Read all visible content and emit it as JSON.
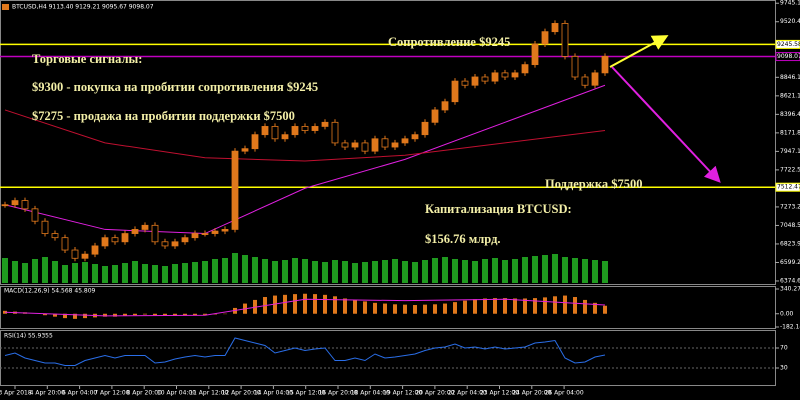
{
  "chart_data": [
    {
      "type": "candlestick",
      "title": "BTCUSD,H4  9113.40 9129.21 9095.67 9098.07",
      "values": [
        7300,
        7350,
        7250,
        7100,
        6950,
        6900,
        6750,
        6650,
        6700,
        6800,
        6900,
        6850,
        6950,
        7000,
        7050,
        6850,
        6800,
        6850,
        6900,
        6950,
        6950,
        6980,
        7000,
        7950,
        7980,
        8150,
        8250,
        8100,
        8150,
        8250,
        8200,
        8250,
        8300,
        8050,
        8000,
        8050,
        7950,
        8100,
        8000,
        8050,
        8100,
        8150,
        8300,
        8450,
        8550,
        8800,
        8750,
        8850,
        8800,
        8900,
        8850,
        8900,
        9000,
        9250,
        9400,
        9500,
        9100,
        8850,
        8750,
        8900,
        9100
      ],
      "volume": [
        25,
        22,
        20,
        24,
        26,
        22,
        18,
        20,
        21,
        19,
        17,
        18,
        20,
        22,
        19,
        18,
        17,
        19,
        20,
        21,
        22,
        24,
        25,
        30,
        28,
        26,
        24,
        22,
        23,
        25,
        24,
        22,
        21,
        23,
        22,
        20,
        21,
        22,
        23,
        24,
        22,
        21,
        23,
        25,
        26,
        24,
        23,
        22,
        24,
        25,
        23,
        24,
        26,
        27,
        28,
        29,
        26,
        25,
        24,
        23,
        22
      ],
      "color_up": "#e0781c",
      "color_down": "#000000",
      "volume_color": "#1f9a1f",
      "series": [
        {
          "color": "#e020e0",
          "x": [
            0,
            10,
            20,
            30,
            40,
            50,
            60
          ],
          "values": [
            7300,
            7000,
            6950,
            7500,
            7850,
            8300,
            8750
          ]
        },
        {
          "color": "#c01030",
          "x": [
            0,
            10,
            20,
            30,
            40,
            50,
            60
          ],
          "values": [
            8450,
            8050,
            7870,
            7830,
            7900,
            8050,
            8200
          ]
        }
      ],
      "levels": [
        {
          "value": 9245.58,
          "label": "9245.58",
          "color": "#ffff00"
        },
        {
          "value": 9098.07,
          "label": "9098.07",
          "color": "#c000c0"
        },
        {
          "value": 7512.47,
          "label": "7512.47",
          "color": "#ffff00"
        }
      ],
      "ylim": [
        6350,
        9760
      ],
      "yticks": [
        {
          "value": 9745.1,
          "label": "9745.10"
        },
        {
          "value": 9520.45,
          "label": "9520.45"
        },
        {
          "value": 8846.15,
          "label": "8846.15"
        },
        {
          "value": 8621.1,
          "label": "8621.10"
        },
        {
          "value": 8396.45,
          "label": "8396.45"
        },
        {
          "value": 8171.8,
          "label": "8171.80"
        },
        {
          "value": 7947.15,
          "label": "7947.15"
        },
        {
          "value": 7722.5,
          "label": "7722.50"
        },
        {
          "value": 7273.2,
          "label": "7273.20"
        },
        {
          "value": 7048.55,
          "label": "7048.55"
        },
        {
          "value": 6823.9,
          "label": "6823.90"
        },
        {
          "value": 6599.25,
          "label": "6599.25"
        },
        {
          "value": 6374.6,
          "label": "6374.60"
        }
      ],
      "annotations": [
        "Торговые сигналы:",
        "$9300 - покупка на пробитии сопротивления $9245",
        "$7275 - продажа на пробитии поддержки $7500",
        "Сопротивление $9245",
        "Поддержка $7500",
        "Капитализация BTCUSD:",
        "$156.76 млрд."
      ],
      "x_labels": [
        "3 Apr 2018",
        "4 Apr 20:00",
        "6 Apr 04:00",
        "7 Apr 12:00",
        "8 Apr 20:00",
        "10 Apr 04:00",
        "11 Apr 12:00",
        "12 Apr 20:00",
        "14 Apr 04:00",
        "15 Apr 12:00",
        "16 Apr 20:00",
        "18 Apr 04:00",
        "19 Apr 12:00",
        "20 Apr 20:00",
        "22 Apr 04:00",
        "23 Apr 12:00",
        "24 Apr 20:00",
        "26 Apr 04:00"
      ]
    },
    {
      "type": "macd",
      "title": "MACD(12,26,9) 54.568 45.809",
      "values": [
        40,
        30,
        20,
        0,
        -20,
        -40,
        -60,
        -70,
        -60,
        -50,
        -40,
        -40,
        -30,
        -20,
        -10,
        -20,
        -30,
        -30,
        -25,
        -20,
        -15,
        -10,
        -5,
        80,
        140,
        190,
        230,
        250,
        260,
        270,
        275,
        270,
        260,
        240,
        210,
        190,
        170,
        150,
        140,
        130,
        125,
        120,
        125,
        130,
        140,
        160,
        180,
        200,
        210,
        215,
        215,
        210,
        210,
        215,
        225,
        240,
        250,
        230,
        190,
        150,
        110
      ],
      "color": "#e0781c",
      "signal": {
        "color": "#e020e0",
        "x": [
          0,
          10,
          20,
          30,
          40,
          50,
          60
        ],
        "values": [
          20,
          -30,
          -20,
          200,
          180,
          200,
          120
        ]
      },
      "ylim": [
        -182.141,
        340.272
      ],
      "yticks": [
        340.272,
        {
          "value": 0,
          "label": "0.00"
        },
        -182.141
      ]
    },
    {
      "type": "rsi",
      "title": "RSI(14) 55.9355",
      "values": [
        55,
        60,
        50,
        45,
        40,
        40,
        35,
        35,
        45,
        50,
        55,
        50,
        55,
        55,
        55,
        40,
        42,
        48,
        52,
        55,
        52,
        55,
        55,
        90,
        85,
        80,
        75,
        60,
        65,
        70,
        65,
        68,
        70,
        45,
        45,
        50,
        45,
        58,
        50,
        52,
        55,
        58,
        65,
        70,
        72,
        78,
        70,
        72,
        68,
        72,
        68,
        70,
        72,
        80,
        82,
        85,
        50,
        40,
        42,
        52,
        56
      ],
      "color": "#2a6ee8",
      "ylim": [
        0,
        100
      ],
      "yticks": [
        70,
        30
      ]
    }
  ]
}
